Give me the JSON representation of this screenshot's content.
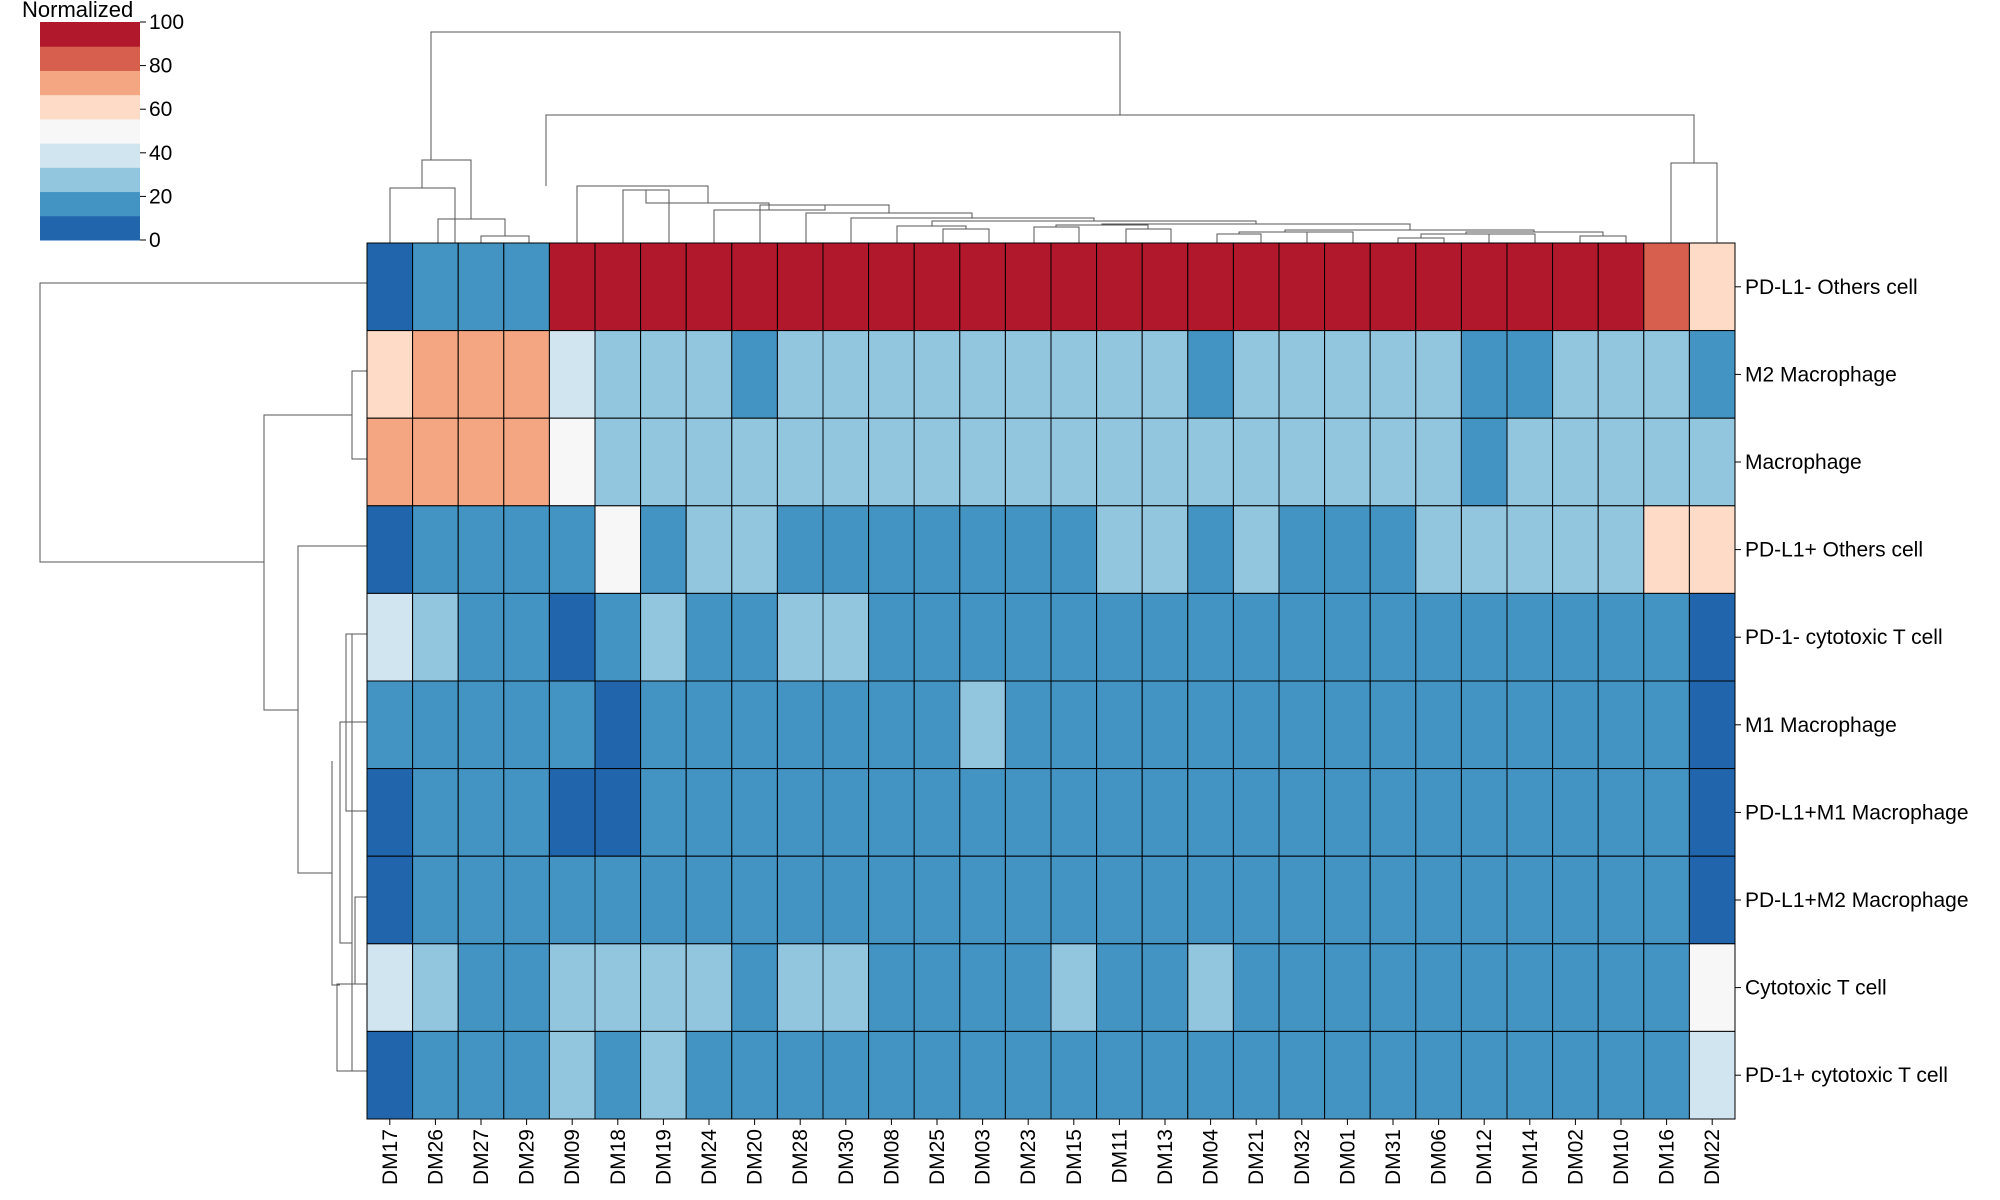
{
  "chart_data": {
    "type": "heatmap",
    "title": "",
    "colorbar": {
      "title": "Normalized",
      "ticks": [
        "100",
        "80",
        "60",
        "40",
        "20",
        "0"
      ],
      "range": [
        0,
        100
      ],
      "bins": [
        "#2166ac",
        "#4393c3",
        "#92c5de",
        "#d1e5f0",
        "#f7f7f7",
        "#fddbc7",
        "#f4a582",
        "#d6604d",
        "#b2182b"
      ]
    },
    "columns": [
      "DM17",
      "DM26",
      "DM27",
      "DM29",
      "DM09",
      "DM18",
      "DM19",
      "DM24",
      "DM20",
      "DM28",
      "DM30",
      "DM08",
      "DM25",
      "DM03",
      "DM23",
      "DM15",
      "DM11",
      "DM13",
      "DM04",
      "DM21",
      "DM32",
      "DM01",
      "DM31",
      "DM06",
      "DM12",
      "DM14",
      "DM02",
      "DM10",
      "DM16",
      "DM22"
    ],
    "rows": [
      "PD-L1- Others cell",
      "M2 Macrophage",
      "Macrophage",
      "PD-L1+ Others cell",
      "PD-1- cytotoxic T cell",
      "M1 Macrophage",
      "PD-L1+M1 Macrophage",
      "PD-L1+M2 Macrophage",
      "Cytotoxic T cell",
      "PD-1+ cytotoxic T cell"
    ],
    "values": [
      [
        5,
        18,
        18,
        18,
        100,
        100,
        100,
        100,
        100,
        100,
        100,
        100,
        100,
        100,
        100,
        100,
        100,
        100,
        100,
        100,
        100,
        100,
        100,
        100,
        100,
        100,
        100,
        100,
        87,
        64
      ],
      [
        64,
        72,
        72,
        72,
        38,
        30,
        30,
        30,
        18,
        30,
        30,
        30,
        30,
        30,
        30,
        30,
        30,
        30,
        18,
        30,
        30,
        30,
        30,
        30,
        18,
        18,
        30,
        30,
        30,
        18
      ],
      [
        72,
        72,
        72,
        72,
        46,
        30,
        30,
        30,
        30,
        30,
        30,
        30,
        30,
        30,
        30,
        30,
        30,
        30,
        30,
        30,
        30,
        30,
        30,
        30,
        18,
        30,
        30,
        30,
        30,
        30
      ],
      [
        5,
        18,
        18,
        18,
        18,
        46,
        18,
        30,
        30,
        18,
        18,
        18,
        18,
        18,
        18,
        18,
        30,
        30,
        18,
        30,
        18,
        18,
        18,
        30,
        30,
        30,
        30,
        30,
        64,
        64
      ],
      [
        38,
        30,
        18,
        18,
        5,
        18,
        30,
        18,
        18,
        30,
        30,
        18,
        18,
        18,
        18,
        18,
        18,
        18,
        18,
        18,
        18,
        18,
        18,
        18,
        18,
        18,
        18,
        18,
        18,
        5
      ],
      [
        18,
        18,
        18,
        18,
        18,
        5,
        18,
        18,
        18,
        18,
        18,
        18,
        18,
        30,
        18,
        18,
        18,
        18,
        18,
        18,
        18,
        18,
        18,
        18,
        18,
        18,
        18,
        18,
        18,
        5
      ],
      [
        5,
        18,
        18,
        18,
        5,
        5,
        18,
        18,
        18,
        18,
        18,
        18,
        18,
        18,
        18,
        18,
        18,
        18,
        18,
        18,
        18,
        18,
        18,
        18,
        18,
        18,
        18,
        18,
        18,
        5
      ],
      [
        5,
        18,
        18,
        18,
        18,
        18,
        18,
        18,
        18,
        18,
        18,
        18,
        18,
        18,
        18,
        18,
        18,
        18,
        18,
        18,
        18,
        18,
        18,
        18,
        18,
        18,
        18,
        18,
        18,
        5
      ],
      [
        38,
        30,
        18,
        18,
        30,
        30,
        30,
        30,
        18,
        30,
        30,
        18,
        18,
        18,
        18,
        30,
        18,
        18,
        30,
        18,
        18,
        18,
        18,
        18,
        18,
        18,
        18,
        18,
        18,
        46
      ],
      [
        5,
        18,
        18,
        18,
        30,
        18,
        30,
        18,
        18,
        18,
        18,
        18,
        18,
        18,
        18,
        18,
        18,
        18,
        18,
        18,
        18,
        18,
        18,
        18,
        18,
        18,
        18,
        18,
        18,
        38
      ]
    ]
  }
}
